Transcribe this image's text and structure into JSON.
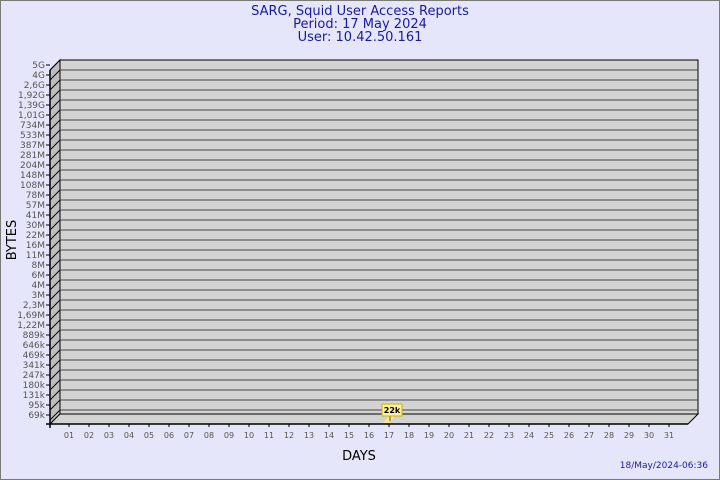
{
  "header": {
    "title": "SARG, Squid User Access Reports",
    "period": "Period: 17 May 2024",
    "user": "User: 10.42.50.161"
  },
  "footer": {
    "timestamp": "18/May/2024-06:36"
  },
  "chart_data": {
    "type": "bar",
    "title": "SARG, Squid User Access Reports",
    "xlabel": "DAYS",
    "ylabel": "BYTES",
    "grid": true,
    "y_scale": "log",
    "categories": [
      "01",
      "02",
      "03",
      "04",
      "05",
      "06",
      "07",
      "08",
      "09",
      "10",
      "11",
      "12",
      "13",
      "14",
      "15",
      "16",
      "17",
      "18",
      "19",
      "20",
      "21",
      "22",
      "23",
      "24",
      "25",
      "26",
      "27",
      "28",
      "29",
      "30",
      "31"
    ],
    "y_ticks": [
      "5G",
      "4G",
      "2,6G",
      "1,92G",
      "1,39G",
      "1,01G",
      "734M",
      "533M",
      "387M",
      "281M",
      "204M",
      "148M",
      "108M",
      "78M",
      "57M",
      "41M",
      "30M",
      "22M",
      "16M",
      "11M",
      "8M",
      "6M",
      "4M",
      "3M",
      "2,3M",
      "1,69M",
      "1,22M",
      "889k",
      "646k",
      "469k",
      "341k",
      "247k",
      "180k",
      "131k",
      "95k",
      "69k"
    ],
    "series": [
      {
        "values": [
          null,
          null,
          null,
          null,
          null,
          null,
          null,
          null,
          null,
          null,
          null,
          null,
          null,
          null,
          null,
          null,
          22000,
          null,
          null,
          null,
          null,
          null,
          null,
          null,
          null,
          null,
          null,
          null,
          null,
          null,
          null
        ],
        "data_labels": {
          "17": "22k"
        }
      }
    ],
    "colors": {
      "plot_bg": "#d3d3d3",
      "wall": "#bebebe",
      "bar": "#ffe88c",
      "label_bg": "#fff0a0",
      "label_border": "#c8b400",
      "text": "#1a1aa0",
      "tick_text": "#555555"
    }
  }
}
